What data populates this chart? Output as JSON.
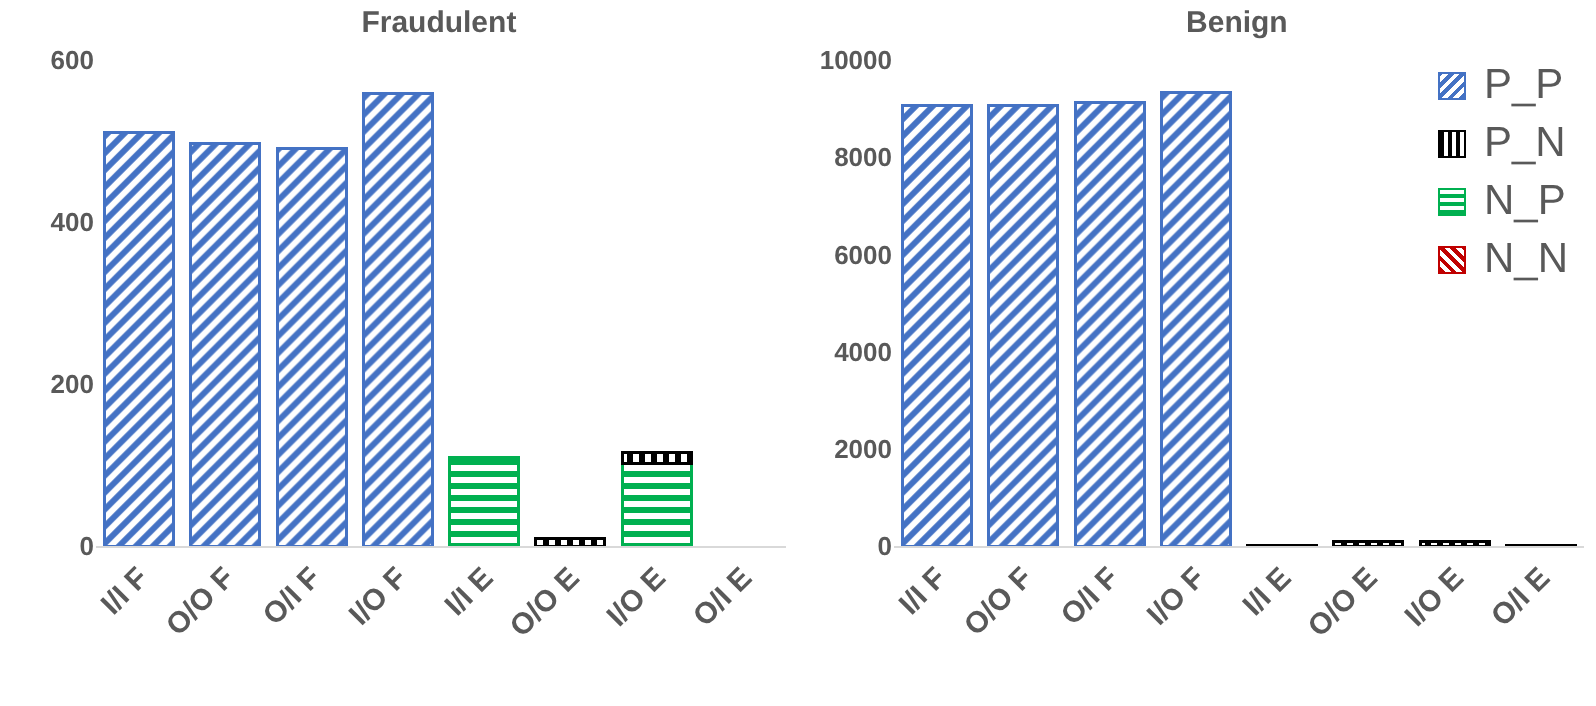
{
  "chart_data": [
    {
      "type": "bar",
      "title": "Fraudulent",
      "stacked": true,
      "legend": false,
      "grid": false,
      "categories": [
        "I/I F",
        "O/O F",
        "O/I F",
        "I/O F",
        "I/I E",
        "O/O E",
        "I/O E",
        "O/I E"
      ],
      "ylim": [
        0,
        600
      ],
      "yticks": [
        0,
        200,
        400,
        600
      ],
      "series": [
        {
          "color": "#4472c4",
          "values": [
            511,
            497,
            491,
            559,
            null,
            null,
            null,
            null
          ]
        },
        {
          "color": "#00b050",
          "values": [
            null,
            null,
            null,
            null,
            109,
            null,
            102,
            null
          ]
        },
        {
          "color": "#000000",
          "values": [
            null,
            null,
            null,
            null,
            null,
            9,
            14,
            null
          ]
        }
      ]
    },
    {
      "type": "bar",
      "title": "Benign",
      "stacked": true,
      "legend": "top right",
      "grid": false,
      "categories": [
        "I/I F",
        "O/O F",
        "O/I F",
        "I/O F",
        "I/I E",
        "O/O E",
        "I/O E",
        "O/I E"
      ],
      "ylim": [
        0,
        10000
      ],
      "yticks": [
        0,
        2000,
        4000,
        6000,
        8000,
        10000
      ],
      "series": [
        {
          "name": "P_P",
          "color": "#4472c4",
          "values": [
            9060,
            9060,
            9120,
            9330,
            null,
            null,
            null,
            null
          ]
        },
        {
          "name": "P_N",
          "color": "#000000",
          "values": [
            null,
            null,
            null,
            null,
            20,
            100,
            100,
            20
          ]
        },
        {
          "name": "N_P",
          "color": "#00b050",
          "values": [
            null,
            null,
            null,
            null,
            null,
            null,
            null,
            null
          ]
        },
        {
          "name": "N_N",
          "color": "#c00000",
          "values": [
            null,
            null,
            null,
            null,
            null,
            null,
            null,
            null
          ]
        }
      ]
    }
  ]
}
